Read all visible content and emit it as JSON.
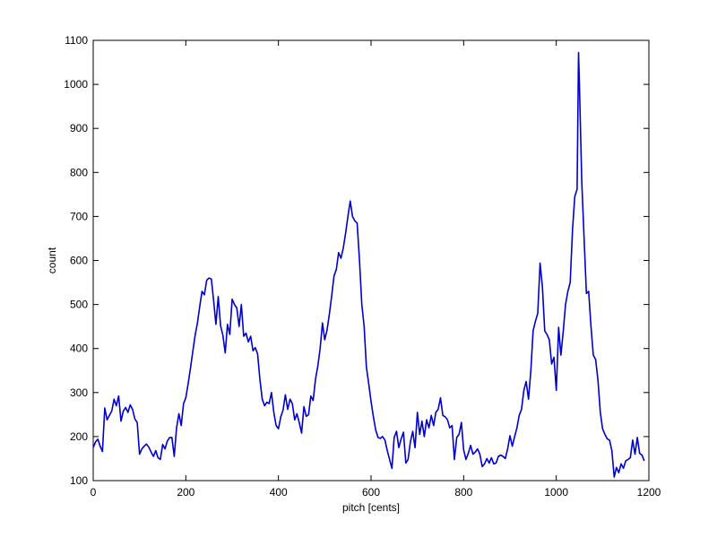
{
  "chart_data": {
    "type": "line",
    "xlabel": "pitch [cents]",
    "ylabel": "count",
    "xlim": [
      0,
      1200
    ],
    "ylim": [
      100,
      1100
    ],
    "xticks": [
      0,
      200,
      400,
      600,
      800,
      1000,
      1200
    ],
    "yticks": [
      100,
      200,
      300,
      400,
      500,
      600,
      700,
      800,
      900,
      1000,
      1100
    ],
    "grid": false,
    "legend": "none",
    "series": [
      {
        "color": "#0000cc",
        "points": [
          [
            0,
            175
          ],
          [
            5,
            188
          ],
          [
            10,
            194
          ],
          [
            15,
            178
          ],
          [
            20,
            166
          ],
          [
            25,
            265
          ],
          [
            30,
            238
          ],
          [
            35,
            248
          ],
          [
            40,
            258
          ],
          [
            45,
            285
          ],
          [
            50,
            270
          ],
          [
            55,
            292
          ],
          [
            60,
            235
          ],
          [
            65,
            258
          ],
          [
            70,
            266
          ],
          [
            75,
            255
          ],
          [
            80,
            272
          ],
          [
            85,
            262
          ],
          [
            90,
            240
          ],
          [
            95,
            232
          ],
          [
            100,
            160
          ],
          [
            105,
            172
          ],
          [
            110,
            178
          ],
          [
            115,
            183
          ],
          [
            120,
            176
          ],
          [
            125,
            165
          ],
          [
            130,
            155
          ],
          [
            135,
            168
          ],
          [
            140,
            152
          ],
          [
            145,
            148
          ],
          [
            150,
            182
          ],
          [
            155,
            172
          ],
          [
            160,
            190
          ],
          [
            165,
            198
          ],
          [
            170,
            198
          ],
          [
            175,
            155
          ],
          [
            180,
            220
          ],
          [
            185,
            252
          ],
          [
            190,
            225
          ],
          [
            195,
            275
          ],
          [
            200,
            288
          ],
          [
            205,
            320
          ],
          [
            210,
            355
          ],
          [
            215,
            393
          ],
          [
            220,
            430
          ],
          [
            225,
            458
          ],
          [
            230,
            495
          ],
          [
            235,
            530
          ],
          [
            240,
            522
          ],
          [
            245,
            555
          ],
          [
            250,
            560
          ],
          [
            255,
            558
          ],
          [
            260,
            510
          ],
          [
            265,
            455
          ],
          [
            270,
            518
          ],
          [
            275,
            452
          ],
          [
            280,
            430
          ],
          [
            285,
            390
          ],
          [
            290,
            455
          ],
          [
            295,
            432
          ],
          [
            300,
            512
          ],
          [
            305,
            500
          ],
          [
            310,
            492
          ],
          [
            315,
            450
          ],
          [
            320,
            500
          ],
          [
            325,
            428
          ],
          [
            330,
            435
          ],
          [
            335,
            415
          ],
          [
            340,
            428
          ],
          [
            345,
            395
          ],
          [
            350,
            402
          ],
          [
            355,
            388
          ],
          [
            360,
            330
          ],
          [
            365,
            285
          ],
          [
            370,
            270
          ],
          [
            375,
            278
          ],
          [
            380,
            275
          ],
          [
            385,
            300
          ],
          [
            390,
            255
          ],
          [
            395,
            225
          ],
          [
            400,
            218
          ],
          [
            405,
            245
          ],
          [
            410,
            260
          ],
          [
            415,
            295
          ],
          [
            420,
            262
          ],
          [
            425,
            285
          ],
          [
            430,
            275
          ],
          [
            435,
            238
          ],
          [
            440,
            252
          ],
          [
            445,
            232
          ],
          [
            450,
            208
          ],
          [
            455,
            268
          ],
          [
            460,
            246
          ],
          [
            465,
            250
          ],
          [
            470,
            292
          ],
          [
            475,
            282
          ],
          [
            480,
            330
          ],
          [
            485,
            360
          ],
          [
            490,
            400
          ],
          [
            495,
            458
          ],
          [
            500,
            420
          ],
          [
            505,
            442
          ],
          [
            510,
            478
          ],
          [
            515,
            520
          ],
          [
            520,
            565
          ],
          [
            525,
            580
          ],
          [
            530,
            618
          ],
          [
            535,
            605
          ],
          [
            540,
            628
          ],
          [
            545,
            662
          ],
          [
            550,
            700
          ],
          [
            555,
            735
          ],
          [
            560,
            700
          ],
          [
            565,
            690
          ],
          [
            570,
            685
          ],
          [
            575,
            600
          ],
          [
            580,
            500
          ],
          [
            585,
            450
          ],
          [
            590,
            358
          ],
          [
            595,
            320
          ],
          [
            600,
            280
          ],
          [
            605,
            245
          ],
          [
            610,
            215
          ],
          [
            615,
            198
          ],
          [
            620,
            196
          ],
          [
            625,
            200
          ],
          [
            630,
            192
          ],
          [
            635,
            168
          ],
          [
            640,
            148
          ],
          [
            645,
            128
          ],
          [
            650,
            198
          ],
          [
            655,
            212
          ],
          [
            660,
            175
          ],
          [
            665,
            195
          ],
          [
            670,
            210
          ],
          [
            675,
            140
          ],
          [
            680,
            148
          ],
          [
            685,
            188
          ],
          [
            690,
            212
          ],
          [
            695,
            175
          ],
          [
            700,
            255
          ],
          [
            705,
            205
          ],
          [
            710,
            235
          ],
          [
            715,
            200
          ],
          [
            720,
            238
          ],
          [
            725,
            220
          ],
          [
            730,
            248
          ],
          [
            735,
            225
          ],
          [
            740,
            255
          ],
          [
            745,
            262
          ],
          [
            750,
            288
          ],
          [
            755,
            248
          ],
          [
            760,
            245
          ],
          [
            765,
            238
          ],
          [
            770,
            220
          ],
          [
            775,
            225
          ],
          [
            780,
            148
          ],
          [
            785,
            198
          ],
          [
            790,
            205
          ],
          [
            795,
            232
          ],
          [
            800,
            170
          ],
          [
            805,
            148
          ],
          [
            810,
            162
          ],
          [
            815,
            180
          ],
          [
            820,
            160
          ],
          [
            825,
            165
          ],
          [
            830,
            172
          ],
          [
            835,
            160
          ],
          [
            840,
            132
          ],
          [
            845,
            138
          ],
          [
            850,
            150
          ],
          [
            855,
            140
          ],
          [
            860,
            152
          ],
          [
            865,
            138
          ],
          [
            870,
            140
          ],
          [
            875,
            155
          ],
          [
            880,
            158
          ],
          [
            885,
            155
          ],
          [
            890,
            150
          ],
          [
            895,
            172
          ],
          [
            900,
            202
          ],
          [
            905,
            178
          ],
          [
            910,
            200
          ],
          [
            915,
            220
          ],
          [
            920,
            248
          ],
          [
            925,
            262
          ],
          [
            930,
            305
          ],
          [
            935,
            325
          ],
          [
            940,
            285
          ],
          [
            945,
            350
          ],
          [
            950,
            440
          ],
          [
            955,
            462
          ],
          [
            960,
            480
          ],
          [
            965,
            594
          ],
          [
            970,
            540
          ],
          [
            975,
            440
          ],
          [
            980,
            432
          ],
          [
            985,
            420
          ],
          [
            990,
            365
          ],
          [
            995,
            380
          ],
          [
            1000,
            305
          ],
          [
            1005,
            448
          ],
          [
            1010,
            385
          ],
          [
            1015,
            438
          ],
          [
            1020,
            500
          ],
          [
            1025,
            530
          ],
          [
            1030,
            550
          ],
          [
            1035,
            670
          ],
          [
            1040,
            745
          ],
          [
            1045,
            762
          ],
          [
            1048,
            1072
          ],
          [
            1050,
            1000
          ],
          [
            1055,
            780
          ],
          [
            1060,
            650
          ],
          [
            1065,
            525
          ],
          [
            1070,
            530
          ],
          [
            1075,
            450
          ],
          [
            1080,
            385
          ],
          [
            1085,
            375
          ],
          [
            1090,
            328
          ],
          [
            1095,
            255
          ],
          [
            1100,
            218
          ],
          [
            1105,
            205
          ],
          [
            1110,
            195
          ],
          [
            1115,
            192
          ],
          [
            1120,
            168
          ],
          [
            1125,
            108
          ],
          [
            1130,
            130
          ],
          [
            1135,
            118
          ],
          [
            1140,
            138
          ],
          [
            1145,
            128
          ],
          [
            1150,
            145
          ],
          [
            1155,
            148
          ],
          [
            1160,
            152
          ],
          [
            1165,
            192
          ],
          [
            1170,
            160
          ],
          [
            1175,
            198
          ],
          [
            1180,
            162
          ],
          [
            1185,
            158
          ],
          [
            1190,
            145
          ]
        ]
      }
    ]
  }
}
